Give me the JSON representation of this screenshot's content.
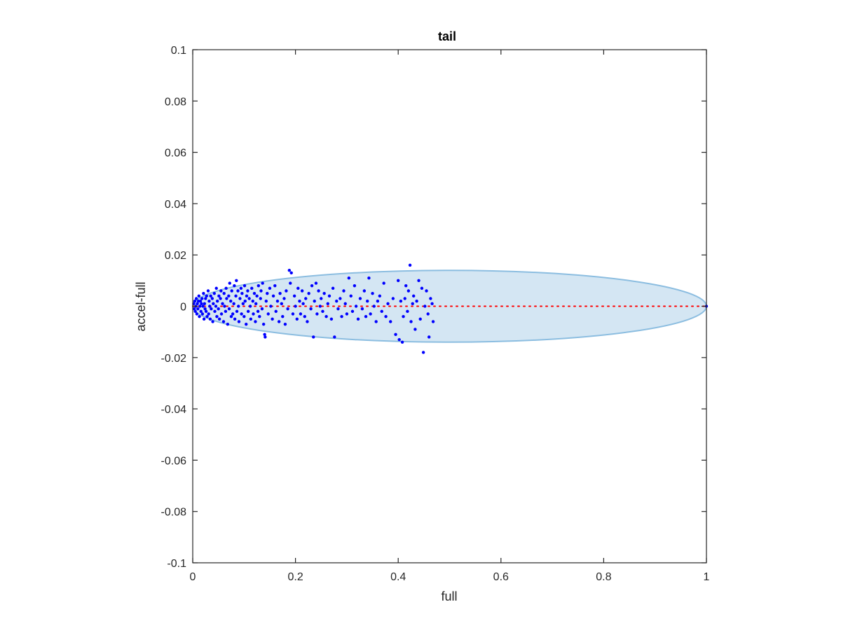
{
  "chart_data": {
    "type": "scatter",
    "title": "tail",
    "xlabel": "full",
    "ylabel": "accel-full",
    "xlim": [
      0,
      1
    ],
    "ylim": [
      -0.1,
      0.1
    ],
    "x_ticks": [
      0,
      0.2,
      0.4,
      0.6,
      0.8,
      1
    ],
    "x_tick_labels": [
      "0",
      "0.2",
      "0.4",
      "0.6",
      "0.8",
      "1"
    ],
    "y_ticks": [
      0.1,
      0.08,
      0.06,
      0.04,
      0.02,
      0,
      -0.02,
      -0.04,
      -0.06,
      -0.08,
      -0.1
    ],
    "y_tick_labels": [
      "0.1",
      "0.08",
      "0.06",
      "0.04",
      "0.02",
      "0",
      "-0.02",
      "-0.04",
      "-0.06",
      "-0.08",
      "-0.1"
    ],
    "grid": false,
    "box": true,
    "ellipse": {
      "center": [
        0.5,
        0
      ],
      "semi_axes": [
        0.5,
        0.014
      ],
      "fill": "#d4e6f3",
      "edge": "#8bbde0"
    },
    "reference_line": {
      "y": 0,
      "x_range": [
        0,
        1
      ],
      "style": "dotted",
      "color": "#ff0000"
    },
    "series": [
      {
        "marker_color": "#0000ff",
        "points": [
          [
            0.002,
            0.001
          ],
          [
            0.003,
            -0.001
          ],
          [
            0.004,
            0.002
          ],
          [
            0.005,
            -0.002
          ],
          [
            0.006,
            0.0
          ],
          [
            0.007,
            0.003
          ],
          [
            0.008,
            -0.003
          ],
          [
            0.009,
            0.001
          ],
          [
            0.01,
            -0.001
          ],
          [
            0.011,
            0.002
          ],
          [
            0.012,
            0.004
          ],
          [
            0.013,
            -0.004
          ],
          [
            0.014,
            0.0
          ],
          [
            0.015,
            0.002
          ],
          [
            0.016,
            -0.002
          ],
          [
            0.017,
            0.001
          ],
          [
            0.018,
            0.003
          ],
          [
            0.019,
            -0.003
          ],
          [
            0.02,
            0.0
          ],
          [
            0.021,
            0.005
          ],
          [
            0.022,
            -0.005
          ],
          [
            0.023,
            0.001
          ],
          [
            0.024,
            -0.001
          ],
          [
            0.025,
            0.003
          ],
          [
            0.026,
            -0.002
          ],
          [
            0.027,
            0.004
          ],
          [
            0.028,
            -0.004
          ],
          [
            0.03,
            0.006
          ],
          [
            0.031,
            -0.003
          ],
          [
            0.032,
            0.002
          ],
          [
            0.033,
            0.0
          ],
          [
            0.034,
            -0.005
          ],
          [
            0.035,
            0.004
          ],
          [
            0.036,
            -0.001
          ],
          [
            0.038,
            0.003
          ],
          [
            0.039,
            -0.006
          ],
          [
            0.04,
            0.001
          ],
          [
            0.042,
            0.005
          ],
          [
            0.043,
            -0.002
          ],
          [
            0.045,
            0.0
          ],
          [
            0.046,
            0.007
          ],
          [
            0.047,
            -0.004
          ],
          [
            0.048,
            0.002
          ],
          [
            0.05,
            -0.001
          ],
          [
            0.051,
            0.004
          ],
          [
            0.052,
            -0.005
          ],
          [
            0.054,
            0.003
          ],
          [
            0.055,
            0.006
          ],
          [
            0.056,
            -0.003
          ],
          [
            0.058,
            0.001
          ],
          [
            0.06,
            -0.006
          ],
          [
            0.061,
            0.005
          ],
          [
            0.062,
            0.0
          ],
          [
            0.064,
            -0.002
          ],
          [
            0.065,
            0.007
          ],
          [
            0.066,
            0.003
          ],
          [
            0.068,
            -0.007
          ],
          [
            0.07,
            0.004
          ],
          [
            0.071,
            -0.001
          ],
          [
            0.072,
            0.009
          ],
          [
            0.074,
            0.002
          ],
          [
            0.075,
            -0.004
          ],
          [
            0.076,
            0.006
          ],
          [
            0.078,
            -0.003
          ],
          [
            0.08,
            0.001
          ],
          [
            0.081,
            0.008
          ],
          [
            0.082,
            -0.005
          ],
          [
            0.084,
            0.004
          ],
          [
            0.085,
            0.01
          ],
          [
            0.086,
            -0.002
          ],
          [
            0.088,
            0.006
          ],
          [
            0.089,
            0.0
          ],
          [
            0.09,
            -0.006
          ],
          [
            0.092,
            0.003
          ],
          [
            0.094,
            0.007
          ],
          [
            0.095,
            -0.003
          ],
          [
            0.096,
            0.005
          ],
          [
            0.098,
            0.001
          ],
          [
            0.1,
            -0.004
          ],
          [
            0.101,
            0.008
          ],
          [
            0.102,
            0.002
          ],
          [
            0.104,
            -0.007
          ],
          [
            0.105,
            0.004
          ],
          [
            0.107,
            0.006
          ],
          [
            0.108,
            -0.002
          ],
          [
            0.11,
            0.003
          ],
          [
            0.112,
            0.0
          ],
          [
            0.113,
            -0.005
          ],
          [
            0.115,
            0.007
          ],
          [
            0.117,
            0.002
          ],
          [
            0.118,
            -0.003
          ],
          [
            0.12,
            0.005
          ],
          [
            0.122,
            -0.006
          ],
          [
            0.123,
            0.001
          ],
          [
            0.125,
            0.004
          ],
          [
            0.127,
            -0.002
          ],
          [
            0.128,
            0.008
          ],
          [
            0.13,
            -0.004
          ],
          [
            0.132,
            0.003
          ],
          [
            0.133,
            0.006
          ],
          [
            0.135,
            -0.001
          ],
          [
            0.136,
            0.009
          ],
          [
            0.138,
            -0.007
          ],
          [
            0.14,
            -0.011
          ],
          [
            0.141,
            -0.012
          ],
          [
            0.143,
            0.002
          ],
          [
            0.145,
            0.005
          ],
          [
            0.147,
            -0.003
          ],
          [
            0.15,
            0.007
          ],
          [
            0.152,
            0.0
          ],
          [
            0.155,
            -0.005
          ],
          [
            0.157,
            0.004
          ],
          [
            0.16,
            0.008
          ],
          [
            0.162,
            -0.002
          ],
          [
            0.165,
            0.002
          ],
          [
            0.168,
            -0.006
          ],
          [
            0.17,
            0.005
          ],
          [
            0.173,
            0.001
          ],
          [
            0.175,
            -0.004
          ],
          [
            0.178,
            0.003
          ],
          [
            0.18,
            -0.007
          ],
          [
            0.182,
            0.006
          ],
          [
            0.185,
            -0.001
          ],
          [
            0.188,
            0.014
          ],
          [
            0.19,
            0.009
          ],
          [
            0.192,
            0.013
          ],
          [
            0.195,
            -0.003
          ],
          [
            0.198,
            0.004
          ],
          [
            0.2,
            0.0
          ],
          [
            0.203,
            -0.005
          ],
          [
            0.205,
            0.007
          ],
          [
            0.208,
            0.002
          ],
          [
            0.21,
            -0.003
          ],
          [
            0.213,
            0.006
          ],
          [
            0.215,
            0.001
          ],
          [
            0.218,
            -0.004
          ],
          [
            0.22,
            0.003
          ],
          [
            0.223,
            -0.006
          ],
          [
            0.226,
            0.005
          ],
          [
            0.23,
            -0.001
          ],
          [
            0.232,
            0.008
          ],
          [
            0.235,
            -0.012
          ],
          [
            0.237,
            0.002
          ],
          [
            0.24,
            0.009
          ],
          [
            0.242,
            -0.003
          ],
          [
            0.245,
            0.006
          ],
          [
            0.248,
            0.0
          ],
          [
            0.25,
            0.003
          ],
          [
            0.253,
            -0.002
          ],
          [
            0.256,
            0.005
          ],
          [
            0.26,
            -0.004
          ],
          [
            0.263,
            0.001
          ],
          [
            0.266,
            0.004
          ],
          [
            0.27,
            -0.005
          ],
          [
            0.273,
            0.007
          ],
          [
            0.276,
            -0.012
          ],
          [
            0.28,
            0.002
          ],
          [
            0.283,
            -0.001
          ],
          [
            0.287,
            0.003
          ],
          [
            0.29,
            -0.004
          ],
          [
            0.294,
            0.006
          ],
          [
            0.297,
            0.001
          ],
          [
            0.3,
            -0.003
          ],
          [
            0.304,
            0.011
          ],
          [
            0.308,
            0.004
          ],
          [
            0.311,
            -0.002
          ],
          [
            0.315,
            0.008
          ],
          [
            0.318,
            0.0
          ],
          [
            0.322,
            -0.005
          ],
          [
            0.326,
            0.003
          ],
          [
            0.33,
            -0.001
          ],
          [
            0.334,
            0.006
          ],
          [
            0.337,
            -0.004
          ],
          [
            0.34,
            0.002
          ],
          [
            0.343,
            0.011
          ],
          [
            0.346,
            -0.003
          ],
          [
            0.35,
            0.005
          ],
          [
            0.353,
            0.0
          ],
          [
            0.357,
            -0.006
          ],
          [
            0.36,
            0.002
          ],
          [
            0.364,
            0.004
          ],
          [
            0.368,
            -0.002
          ],
          [
            0.372,
            0.009
          ],
          [
            0.376,
            -0.004
          ],
          [
            0.38,
            0.001
          ],
          [
            0.385,
            -0.006
          ],
          [
            0.39,
            0.003
          ],
          [
            0.395,
            -0.011
          ],
          [
            0.4,
            0.01
          ],
          [
            0.402,
            -0.013
          ],
          [
            0.405,
            0.002
          ],
          [
            0.408,
            -0.014
          ],
          [
            0.41,
            -0.004
          ],
          [
            0.413,
            0.003
          ],
          [
            0.415,
            0.008
          ],
          [
            0.418,
            -0.002
          ],
          [
            0.42,
            0.006
          ],
          [
            0.423,
            0.016
          ],
          [
            0.425,
            -0.006
          ],
          [
            0.428,
            0.001
          ],
          [
            0.43,
            0.004
          ],
          [
            0.433,
            -0.009
          ],
          [
            0.436,
            0.002
          ],
          [
            0.44,
            0.01
          ],
          [
            0.443,
            -0.005
          ],
          [
            0.446,
            0.007
          ],
          [
            0.449,
            -0.018
          ],
          [
            0.452,
            0.0
          ],
          [
            0.455,
            0.006
          ],
          [
            0.458,
            -0.003
          ],
          [
            0.46,
            -0.012
          ],
          [
            0.463,
            0.003
          ],
          [
            0.466,
            0.001
          ],
          [
            0.468,
            -0.006
          ],
          [
            1.0,
            0.0
          ]
        ]
      }
    ]
  }
}
